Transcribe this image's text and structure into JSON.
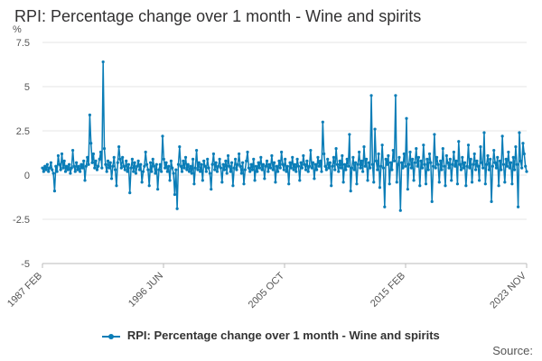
{
  "chart_data": {
    "type": "line",
    "title": "RPI: Percentage change over 1 month - Wine and spirits",
    "ylabel": "%",
    "xlabel": "",
    "ylim": [
      -5,
      7.5
    ],
    "yticks": [
      "7.5",
      "5",
      "2.5",
      "0",
      "-2.5",
      "-5"
    ],
    "xticks": [
      "1987 FEB",
      "1996 JUN",
      "2005 OCT",
      "2015 FEB",
      "2023 NOV"
    ],
    "x_start": "1987 FEB",
    "x_end": "2023 NOV",
    "grid": true,
    "legend_position": "bottom",
    "series": [
      {
        "name": "RPI: Percentage change over 1 month - Wine and spirits",
        "color": "#0a7db7",
        "values": [
          0.4,
          0.2,
          0.5,
          0.3,
          0.6,
          0.2,
          0.4,
          0.7,
          0.3,
          0.1,
          -0.9,
          0.5,
          0.2,
          1.1,
          0.6,
          0.3,
          1.2,
          0.4,
          0.8,
          0.2,
          0.5,
          0.3,
          0.6,
          0.1,
          0.4,
          1.4,
          0.5,
          0.2,
          0.7,
          0.3,
          0.5,
          0.2,
          0.6,
          0.4,
          0.8,
          -0.3,
          0.5,
          1.0,
          0.6,
          3.4,
          1.8,
          0.7,
          1.2,
          0.4,
          0.8,
          0.3,
          0.5,
          0.9,
          1.3,
          0.4,
          6.4,
          1.5,
          0.6,
          0.2,
          0.8,
          0.4,
          0.7,
          -0.2,
          0.5,
          1.0,
          0.3,
          -0.6,
          0.7,
          1.6,
          0.9,
          0.4,
          1.0,
          0.5,
          0.3,
          0.8,
          0.2,
          0.6,
          -1.0,
          0.4,
          0.9,
          0.2,
          0.7,
          0.1,
          0.5,
          0.8,
          0.3,
          0.6,
          -0.4,
          0.2,
          0.5,
          1.3,
          0.6,
          0.3,
          -0.6,
          0.7,
          0.2,
          0.9,
          0.5,
          0.1,
          0.6,
          -0.8,
          0.3,
          0.6,
          0.2,
          2.2,
          0.9,
          0.4,
          0.7,
          0.2,
          0.5,
          -0.3,
          0.8,
          0.4,
          0.1,
          -1.1,
          0.3,
          -1.9,
          0.6,
          1.6,
          0.5,
          0.2,
          0.8,
          0.4,
          1.0,
          0.3,
          0.6,
          0.2,
          0.5,
          0.1,
          0.9,
          -0.5,
          0.4,
          1.4,
          0.3,
          0.7,
          0.2,
          0.6,
          -0.3,
          0.8,
          0.5,
          0.2,
          0.9,
          0.4,
          0.1,
          -0.8,
          0.6,
          1.2,
          0.3,
          0.7,
          0.2,
          0.5,
          0.9,
          0.4,
          -0.4,
          0.6,
          0.3,
          0.8,
          0.1,
          1.1,
          0.5,
          0.2,
          0.7,
          -0.6,
          0.4,
          0.9,
          0.3,
          0.6,
          1.2,
          0.5,
          0.1,
          0.7,
          -0.5,
          0.3,
          0.8,
          1.3,
          0.4,
          0.2,
          0.6,
          0.3,
          0.9,
          -0.3,
          0.5,
          0.2,
          0.7,
          0.4,
          1.0,
          0.3,
          0.6,
          -0.2,
          0.5,
          0.8,
          0.2,
          0.6,
          0.4,
          1.1,
          0.3,
          0.7,
          -0.4,
          0.5,
          0.2,
          0.8,
          0.4,
          1.3,
          0.6,
          0.3,
          0.9,
          0.2,
          0.5,
          -0.5,
          0.7,
          0.4,
          1.0,
          0.3,
          0.6,
          0.2,
          0.9,
          0.5,
          -0.3,
          0.7,
          0.4,
          1.1,
          0.6,
          0.3,
          0.8,
          0.2,
          0.5,
          1.4,
          0.4,
          0.7,
          -0.2,
          0.6,
          0.3,
          1.0,
          0.5,
          0.8,
          0.2,
          3.0,
          1.2,
          0.5,
          0.3,
          0.9,
          0.4,
          0.7,
          -0.6,
          0.5,
          1.0,
          0.3,
          1.5,
          0.6,
          0.2,
          0.8,
          0.4,
          1.1,
          -0.4,
          0.6,
          0.3,
          0.9,
          0.5,
          2.3,
          -0.9,
          0.4,
          1.0,
          0.3,
          0.7,
          -0.5,
          0.6,
          1.3,
          0.4,
          0.8,
          0.2,
          1.6,
          0.5,
          0.9,
          -0.3,
          0.7,
          0.4,
          4.5,
          0.6,
          -0.4,
          2.6,
          0.8,
          0.3,
          1.2,
          -0.7,
          0.5,
          1.7,
          0.4,
          -1.8,
          0.9,
          0.6,
          1.1,
          -0.5,
          0.7,
          0.3,
          1.4,
          0.8,
          4.5,
          -0.4,
          0.6,
          1.0,
          -2.0,
          0.7,
          0.4,
          1.2,
          0.5,
          3.2,
          -0.8,
          0.6,
          1.3,
          0.4,
          0.9,
          -0.3,
          0.7,
          1.5,
          0.5,
          1.0,
          -0.6,
          0.8,
          0.4,
          1.7,
          0.6,
          -0.5,
          0.9,
          0.3,
          1.2,
          0.7,
          -1.5,
          0.5,
          2.3,
          0.4,
          1.0,
          0.6,
          -0.4,
          0.8,
          0.3,
          1.5,
          0.5,
          -0.6,
          1.1,
          0.7,
          0.4,
          0.9,
          -0.3,
          0.6,
          1.3,
          0.5,
          0.8,
          -0.5,
          1.9,
          0.6,
          0.3,
          1.0,
          0.4,
          0.7,
          -0.6,
          0.5,
          1.7,
          0.4,
          0.9,
          -0.4,
          0.6,
          1.2,
          0.3,
          0.8,
          0.5,
          -0.3,
          1.6,
          0.7,
          0.4,
          2.4,
          -0.5,
          0.6,
          1.1,
          0.3,
          0.9,
          -1.5,
          0.5,
          1.4,
          0.7,
          0.4,
          1.0,
          -0.6,
          0.8,
          0.3,
          2.2,
          0.6,
          -0.4,
          0.9,
          0.5,
          1.3,
          0.4,
          0.7,
          -0.5,
          1.0,
          0.3,
          1.6,
          0.6,
          -1.8,
          2.4,
          0.8,
          0.4,
          1.8,
          1.2,
          0.5,
          0.2
        ]
      }
    ]
  },
  "source_label": "Source:"
}
